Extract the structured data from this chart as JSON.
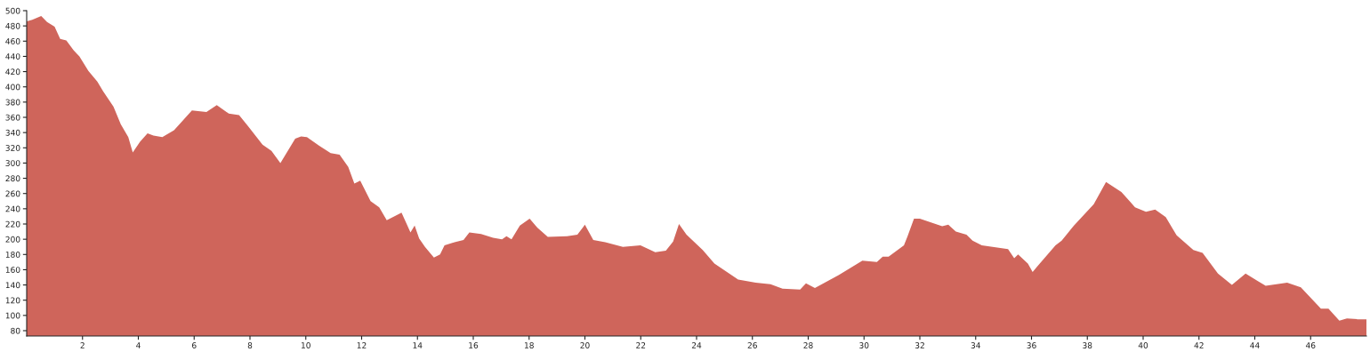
{
  "chart_data": {
    "type": "area",
    "xlim": [
      0,
      48
    ],
    "ylim": [
      73,
      500
    ],
    "xticks": [
      2,
      4,
      6,
      8,
      10,
      12,
      14,
      16,
      18,
      20,
      22,
      24,
      26,
      28,
      30,
      32,
      34,
      36,
      38,
      40,
      42,
      44,
      46
    ],
    "yticks": [
      80,
      100,
      120,
      140,
      160,
      180,
      200,
      220,
      240,
      260,
      280,
      300,
      320,
      340,
      360,
      380,
      400,
      420,
      440,
      460,
      480,
      500
    ],
    "grid": false,
    "legend": false,
    "series": [
      {
        "color": "#cf655b",
        "x": [
          0,
          0.2,
          0.52,
          0.73,
          1.0,
          1.2,
          1.42,
          1.68,
          1.89,
          2.21,
          2.53,
          2.74,
          3.11,
          3.37,
          3.64,
          3.8,
          4.06,
          4.33,
          4.54,
          4.86,
          5.28,
          5.92,
          6.44,
          6.81,
          7.24,
          7.61,
          7.92,
          8.45,
          8.77,
          9.09,
          9.62,
          9.83,
          10.04,
          10.47,
          10.89,
          11.21,
          11.52,
          11.74,
          11.95,
          12.32,
          12.63,
          12.9,
          13.43,
          13.75,
          13.9,
          14.06,
          14.27,
          14.59,
          14.81,
          14.97,
          15.33,
          15.65,
          15.86,
          16.28,
          16.71,
          17.03,
          17.19,
          17.37,
          17.67,
          18.02,
          18.3,
          18.67,
          19.36,
          19.73,
          20.0,
          20.3,
          20.73,
          21.36,
          21.99,
          22.52,
          22.9,
          23.16,
          23.37,
          23.64,
          24.22,
          24.64,
          25.49,
          26.12,
          26.65,
          27.08,
          27.71,
          27.92,
          28.24,
          29.09,
          29.94,
          30.46,
          30.67,
          30.88,
          31.43,
          31.56,
          31.79,
          32.0,
          32.8,
          33.02,
          33.29,
          33.67,
          33.89,
          34.22,
          35.16,
          35.38,
          35.52,
          35.87,
          36.04,
          36.2,
          36.86,
          37.08,
          37.52,
          38.23,
          38.67,
          39.22,
          39.71,
          40.1,
          40.43,
          40.81,
          41.2,
          41.8,
          42.13,
          42.68,
          43.18,
          43.67,
          44.11,
          44.39,
          45.16,
          45.65,
          46.37,
          46.64,
          47.03,
          47.3,
          47.69,
          48.0
        ],
        "values": [
          486,
          488,
          493,
          485,
          479,
          463,
          461,
          448,
          440,
          421,
          407,
          394,
          374,
          351,
          334,
          314,
          328,
          339,
          336,
          334,
          343,
          369,
          367,
          376,
          365,
          363,
          349,
          324,
          316,
          300,
          332,
          335,
          334,
          323,
          313,
          311,
          295,
          273,
          277,
          250,
          242,
          225,
          235,
          209,
          218,
          201,
          190,
          176,
          180,
          192,
          196,
          199,
          209,
          207,
          202,
          200,
          204,
          200,
          218,
          227,
          215,
          203,
          204,
          206,
          219,
          199,
          196,
          190,
          192,
          183,
          185,
          197,
          220,
          206,
          186,
          168,
          147,
          143,
          141,
          135,
          134,
          142,
          136,
          153,
          172,
          170,
          177,
          177,
          192,
          204,
          227,
          227,
          217,
          219,
          210,
          206,
          198,
          192,
          187,
          175,
          180,
          168,
          157,
          164,
          192,
          198,
          218,
          246,
          275,
          262,
          242,
          236,
          239,
          229,
          205,
          186,
          182,
          155,
          140,
          155,
          145,
          139,
          143,
          137,
          109,
          109,
          93,
          96,
          95,
          95
        ]
      }
    ]
  }
}
